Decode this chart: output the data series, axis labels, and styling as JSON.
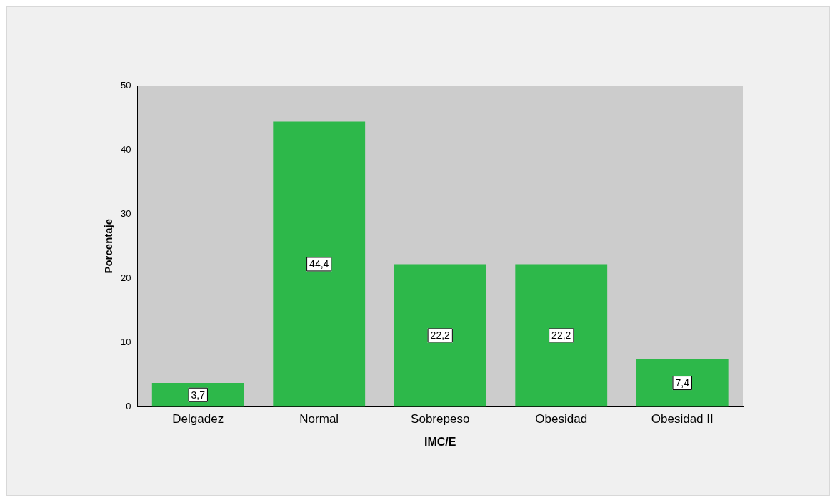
{
  "chart_data": {
    "type": "bar",
    "xlabel": "IMC/E",
    "ylabel": "Porcentaje",
    "categories": [
      "Delgadez",
      "Normal",
      "Sobrepeso",
      "Obesidad",
      "Obesidad II"
    ],
    "values": [
      3.7,
      44.4,
      22.2,
      22.2,
      7.4
    ],
    "value_labels": [
      "3,7",
      "44,4",
      "22,2",
      "22,2",
      "7,4"
    ],
    "color": "#2db84a",
    "ylim": [
      0,
      50
    ],
    "yticks": [
      0,
      10,
      20,
      30,
      40,
      50
    ],
    "grid": false,
    "legend": false
  }
}
